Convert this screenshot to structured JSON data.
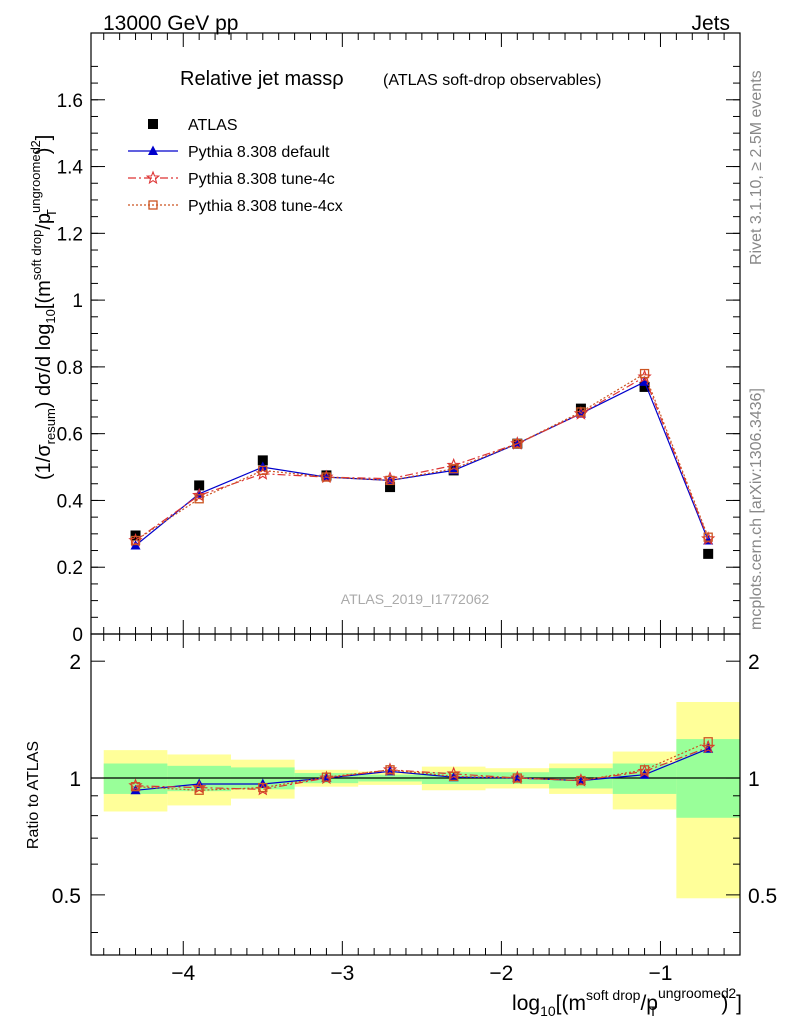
{
  "header": {
    "left": "13000 GeV pp",
    "right": "Jets"
  },
  "side_labels": {
    "rivet": "Rivet 3.1.10, ≥ 2.5M events",
    "mcplots": "mcplots.cern.ch [arXiv:1306.3436]"
  },
  "chart_data": [
    {
      "type": "scatter",
      "panel": "main",
      "title": "Relative jet massρ",
      "subtitle": "(ATLAS soft-drop observables)",
      "watermark": "ATLAS_2019_I1772062",
      "ylabel": {
        "pre": "(1/σ",
        "sub1": "resum",
        "mid": ") dσ/d log",
        "sub2": "10",
        "mid2": "[(m",
        "sup1": "soft drop",
        "mid3": "/p",
        "sup2": "ungroomed",
        "sub3": "T",
        "post": ")",
        "sup3": "2",
        "end": "]"
      },
      "xlim": [
        -4.58,
        -0.5
      ],
      "ylim": [
        0,
        1.8
      ],
      "yticks": [
        0,
        0.2,
        0.4,
        0.6,
        0.8,
        1,
        1.2,
        1.4,
        1.6
      ],
      "ytick_labels": [
        "0",
        "0.2",
        "0.4",
        "0.6",
        "0.8",
        "1",
        "1.2",
        "1.4",
        "1.6"
      ],
      "legend_position": "top-left",
      "x": [
        -4.3,
        -3.9,
        -3.5,
        -3.1,
        -2.7,
        -2.3,
        -1.9,
        -1.5,
        -1.1,
        -0.7
      ],
      "series": [
        {
          "name": "ATLAS",
          "color": "#000000",
          "marker": "square",
          "line": "none",
          "values": [
            0.295,
            0.445,
            0.52,
            0.475,
            0.44,
            0.49,
            0.57,
            0.675,
            0.74,
            0.24
          ]
        },
        {
          "name": "Pythia 8.308 default",
          "color": "#0000cc",
          "marker": "triangle",
          "line": "solid",
          "values": [
            0.265,
            0.42,
            0.5,
            0.47,
            0.46,
            0.49,
            0.57,
            0.66,
            0.755,
            0.28
          ]
        },
        {
          "name": "Pythia 8.308 tune-4c",
          "color": "#dd3333",
          "marker": "star",
          "line": "dashdot",
          "values": [
            0.28,
            0.415,
            0.48,
            0.47,
            0.465,
            0.505,
            0.57,
            0.66,
            0.77,
            0.285
          ]
        },
        {
          "name": "Pythia 8.308 tune-4cx",
          "color": "#cc5522",
          "marker": "open-square",
          "line": "dotted",
          "values": [
            0.28,
            0.405,
            0.49,
            0.47,
            0.46,
            0.495,
            0.57,
            0.665,
            0.78,
            0.29
          ]
        }
      ]
    },
    {
      "type": "scatter",
      "panel": "ratio",
      "ylabel": "Ratio to ATLAS",
      "xlabel": {
        "pre": "log",
        "sub1": "10",
        "mid": "[(m",
        "sup1": "soft drop",
        "mid2": "/p",
        "sup2": "ungroomed",
        "sub2": "T",
        "post": ")",
        "sup3": "2",
        "end": "]"
      },
      "xlim": [
        -4.58,
        -0.5
      ],
      "ylim": [
        0.35,
        2.35
      ],
      "xticks": [
        -4,
        -3,
        -2,
        -1
      ],
      "xtick_labels": [
        "−4",
        "−3",
        "−2",
        "−1"
      ],
      "yticks": [
        0.5,
        1,
        2
      ],
      "ytick_labels": [
        "0.5",
        "1",
        "2"
      ],
      "reference_line": 1,
      "bin_edges": [
        -4.5,
        -4.1,
        -3.7,
        -3.3,
        -2.9,
        -2.5,
        -2.1,
        -1.7,
        -1.3,
        -0.9,
        -0.5
      ],
      "band_inner": {
        "color": "#99ff99",
        "low": [
          0.91,
          0.925,
          0.935,
          0.97,
          0.98,
          0.965,
          0.965,
          0.94,
          0.91,
          0.79
        ],
        "high": [
          1.09,
          1.075,
          1.065,
          1.03,
          1.02,
          1.035,
          1.035,
          1.06,
          1.09,
          1.26
        ]
      },
      "band_outer": {
        "color": "#ffff99",
        "low": [
          0.82,
          0.85,
          0.885,
          0.95,
          0.96,
          0.93,
          0.94,
          0.91,
          0.83,
          0.49
        ],
        "high": [
          1.18,
          1.15,
          1.115,
          1.05,
          1.04,
          1.07,
          1.06,
          1.09,
          1.17,
          1.57
        ]
      },
      "x": [
        -4.3,
        -3.9,
        -3.5,
        -3.1,
        -2.7,
        -2.3,
        -1.9,
        -1.5,
        -1.1,
        -0.7
      ],
      "series": [
        {
          "name": "Pythia 8.308 default",
          "color": "#0000cc",
          "marker": "triangle",
          "line": "solid",
          "values": [
            0.93,
            0.965,
            0.965,
            1.0,
            1.04,
            1.005,
            1.0,
            0.985,
            1.02,
            1.19
          ]
        },
        {
          "name": "Pythia 8.308 tune-4c",
          "color": "#dd3333",
          "marker": "star",
          "line": "dashdot",
          "values": [
            0.955,
            0.945,
            0.935,
            1.0,
            1.05,
            1.025,
            1.0,
            0.985,
            1.04,
            1.2
          ]
        },
        {
          "name": "Pythia 8.308 tune-4cx",
          "color": "#cc5522",
          "marker": "open-square",
          "line": "dotted",
          "values": [
            0.95,
            0.93,
            0.945,
            1.005,
            1.05,
            1.01,
            1.0,
            0.985,
            1.05,
            1.24
          ]
        }
      ]
    }
  ]
}
